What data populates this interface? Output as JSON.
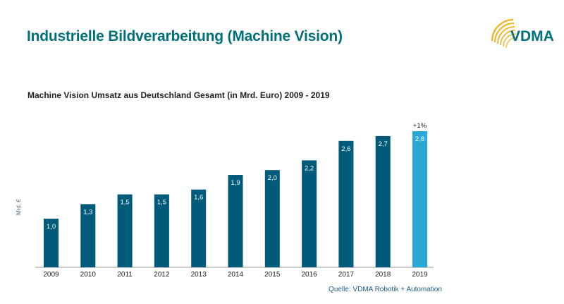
{
  "header": {
    "title": "Industrielle Bildverarbeitung (Machine Vision)",
    "logo_text": "VDMA"
  },
  "colors": {
    "accent": "#00707a",
    "bar": "#005a7a",
    "bar_highlight": "#29a8d4"
  },
  "chart_data": {
    "type": "bar",
    "title": "Machine Vision Umsatz aus Deutschland Gesamt (in Mrd. Euro) 2009 - 2019",
    "xlabel": "",
    "ylabel": "Mrd. €",
    "categories": [
      "2009",
      "2010",
      "2011",
      "2012",
      "2013",
      "2014",
      "2015",
      "2016",
      "2017",
      "2018",
      "2019"
    ],
    "values": [
      1.0,
      1.3,
      1.5,
      1.5,
      1.6,
      1.9,
      2.0,
      2.2,
      2.6,
      2.7,
      2.8
    ],
    "value_labels": [
      "1,0",
      "1,3",
      "1,5",
      "1,5",
      "1,6",
      "1,9",
      "2,0",
      "2,2",
      "2,6",
      "2,7",
      "2,8"
    ],
    "highlight_index": 10,
    "annotation": "+1%",
    "ylim": [
      0,
      2.8
    ],
    "grid": false,
    "legend": "none"
  },
  "footer": {
    "source": "Quelle: VDMA Robotik + Automation"
  }
}
